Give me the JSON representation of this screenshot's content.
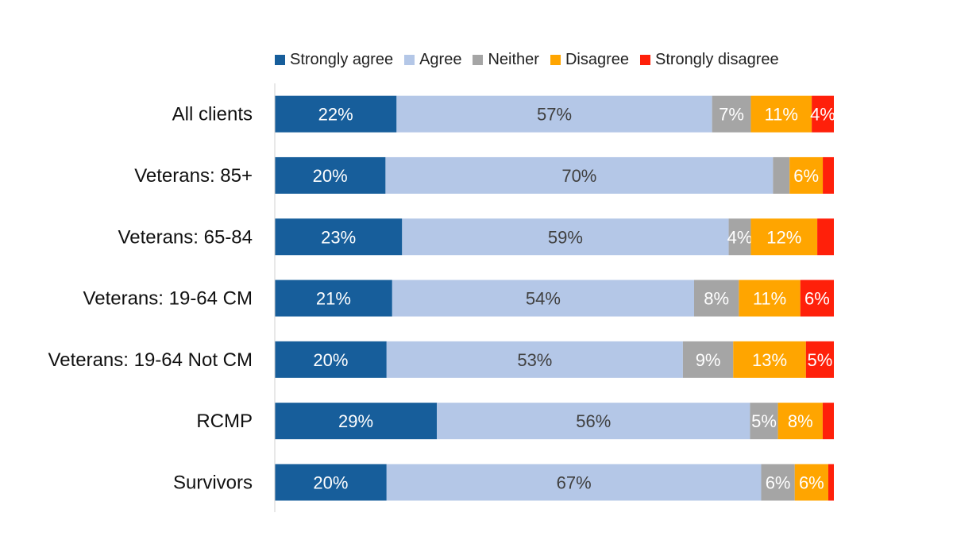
{
  "chart_data": {
    "type": "bar",
    "orientation": "horizontal",
    "stacked": true,
    "title": "",
    "xlabel": "",
    "ylabel": "",
    "xlim": [
      0,
      100
    ],
    "grid": false,
    "legend_position": "top",
    "categories": [
      "All clients",
      "Veterans: 85+",
      "Veterans: 65-84",
      "Veterans: 19-64 CM",
      "Veterans: 19-64 Not CM",
      "RCMP",
      "Survivors"
    ],
    "series": [
      {
        "name": "Strongly agree",
        "color": "#175E9B",
        "label_color": "#FFFFFF",
        "values": [
          22,
          20,
          23,
          21,
          20,
          29,
          20
        ],
        "labels": [
          "22%",
          "20%",
          "23%",
          "21%",
          "20%",
          "29%",
          "20%"
        ]
      },
      {
        "name": "Agree",
        "color": "#B4C7E7",
        "label_color": "#404040",
        "values": [
          57,
          70,
          59,
          54,
          53,
          56,
          67
        ],
        "labels": [
          "57%",
          "70%",
          "59%",
          "54%",
          "53%",
          "56%",
          "67%"
        ]
      },
      {
        "name": "Neither",
        "color": "#A5A5A5",
        "label_color": "#FFFFFF",
        "values": [
          7,
          3,
          4,
          8,
          9,
          5,
          6
        ],
        "labels": [
          "7%",
          "",
          "4%",
          "8%",
          "9%",
          "5%",
          "6%"
        ]
      },
      {
        "name": "Disagree",
        "color": "#FFA500",
        "label_color": "#FFFFFF",
        "values": [
          11,
          6,
          12,
          11,
          13,
          8,
          6
        ],
        "labels": [
          "11%",
          "6%",
          "12%",
          "11%",
          "13%",
          "8%",
          "6%"
        ]
      },
      {
        "name": "Strongly disagree",
        "color": "#FF200A",
        "label_color": "#FFFFFF",
        "values": [
          4,
          2,
          3,
          6,
          5,
          2,
          1
        ],
        "labels": [
          "4%",
          "",
          "",
          "6%",
          "5%",
          "",
          ""
        ]
      }
    ]
  }
}
